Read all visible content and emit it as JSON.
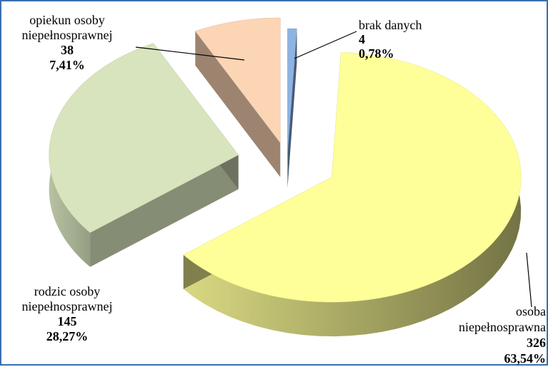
{
  "chart_data": {
    "type": "pie",
    "title": "",
    "slices": [
      {
        "label_lines": [
          "brak danych"
        ],
        "count": "4",
        "percent_label": "0,78%",
        "value": 0.78,
        "color": "#8db3e2"
      },
      {
        "label_lines": [
          "osoba",
          "niepełnosprawna"
        ],
        "count": "326",
        "percent_label": "63,54%",
        "value": 63.54,
        "color": "#ffff99"
      },
      {
        "label_lines": [
          "rodzic osoby",
          "niepełnosprawnej"
        ],
        "count": "145",
        "percent_label": "28,27%",
        "value": 28.27,
        "color": "#d7e4bd"
      },
      {
        "label_lines": [
          "opiekun osoby",
          "niepełnosprawnej"
        ],
        "count": "38",
        "percent_label": "7,41%",
        "value": 7.41,
        "color": "#fcd5b5"
      }
    ],
    "start_angle_deg": 90,
    "direction": "clockwise",
    "style": "3d-exploded"
  }
}
